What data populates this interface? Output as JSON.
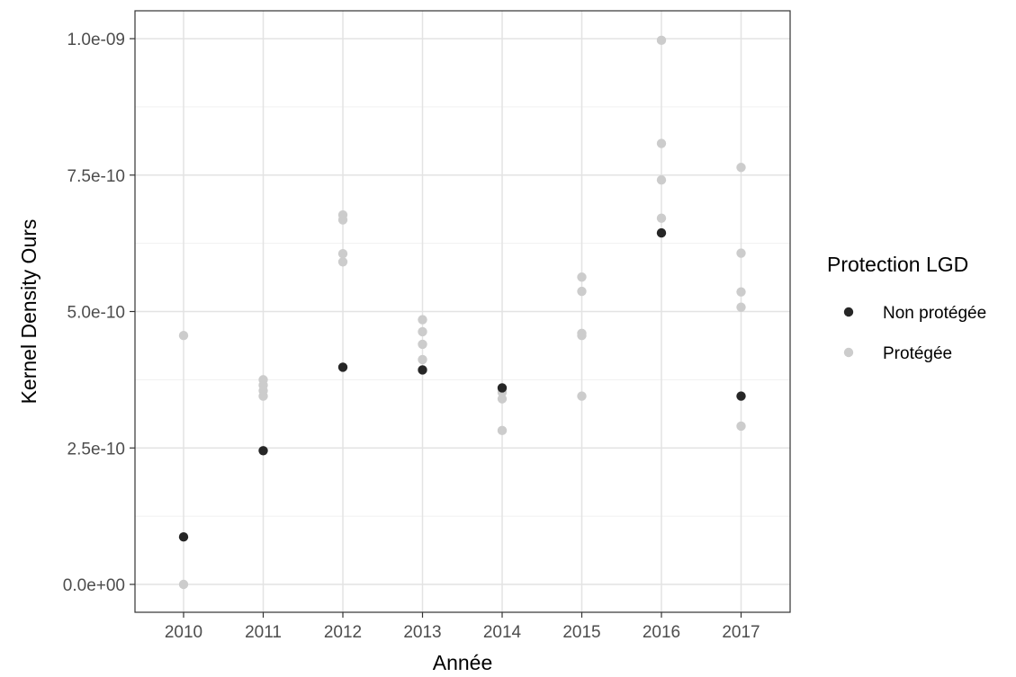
{
  "chart_data": {
    "type": "scatter",
    "title": "",
    "xlabel": "Année",
    "ylabel": "Kernel Density Ours",
    "x_categories": [
      "2010",
      "2011",
      "2012",
      "2013",
      "2014",
      "2015",
      "2016",
      "2017"
    ],
    "y_ticks": [
      0,
      2.5e-10,
      5e-10,
      7.5e-10,
      1e-09
    ],
    "y_tick_labels": [
      "0.0e+00",
      "2.5e-10",
      "5.0e-10",
      "7.5e-10",
      "1.0e-09"
    ],
    "ylim": [
      -5e-11,
      1.05e-09
    ],
    "grid": true,
    "legend": {
      "title": "Protection LGD",
      "position": "right"
    },
    "series": [
      {
        "name": "Non protégée",
        "color": "#262626",
        "points": [
          {
            "x": "2010",
            "y": 8.7e-11
          },
          {
            "x": "2011",
            "y": 2.45e-10
          },
          {
            "x": "2012",
            "y": 3.98e-10
          },
          {
            "x": "2013",
            "y": 3.93e-10
          },
          {
            "x": "2014",
            "y": 3.6e-10
          },
          {
            "x": "2016",
            "y": 6.44e-10
          },
          {
            "x": "2017",
            "y": 3.45e-10
          }
        ]
      },
      {
        "name": "Protégée",
        "color": "#cccccc",
        "points": [
          {
            "x": "2010",
            "y": 0.0
          },
          {
            "x": "2010",
            "y": 4.56e-10
          },
          {
            "x": "2011",
            "y": 3.45e-10
          },
          {
            "x": "2011",
            "y": 3.55e-10
          },
          {
            "x": "2011",
            "y": 3.65e-10
          },
          {
            "x": "2011",
            "y": 3.75e-10
          },
          {
            "x": "2012",
            "y": 5.91e-10
          },
          {
            "x": "2012",
            "y": 6.06e-10
          },
          {
            "x": "2012",
            "y": 6.68e-10
          },
          {
            "x": "2012",
            "y": 6.77e-10
          },
          {
            "x": "2013",
            "y": 4.12e-10
          },
          {
            "x": "2013",
            "y": 4.4e-10
          },
          {
            "x": "2013",
            "y": 4.63e-10
          },
          {
            "x": "2013",
            "y": 4.85e-10
          },
          {
            "x": "2014",
            "y": 2.82e-10
          },
          {
            "x": "2014",
            "y": 3.4e-10
          },
          {
            "x": "2014",
            "y": 3.52e-10
          },
          {
            "x": "2015",
            "y": 3.45e-10
          },
          {
            "x": "2015",
            "y": 4.56e-10
          },
          {
            "x": "2015",
            "y": 4.6e-10
          },
          {
            "x": "2015",
            "y": 5.37e-10
          },
          {
            "x": "2015",
            "y": 5.63e-10
          },
          {
            "x": "2016",
            "y": 6.71e-10
          },
          {
            "x": "2016",
            "y": 7.41e-10
          },
          {
            "x": "2016",
            "y": 8.08e-10
          },
          {
            "x": "2016",
            "y": 9.97e-10
          },
          {
            "x": "2017",
            "y": 2.9e-10
          },
          {
            "x": "2017",
            "y": 5.08e-10
          },
          {
            "x": "2017",
            "y": 5.36e-10
          },
          {
            "x": "2017",
            "y": 6.07e-10
          },
          {
            "x": "2017",
            "y": 7.64e-10
          }
        ]
      }
    ]
  }
}
